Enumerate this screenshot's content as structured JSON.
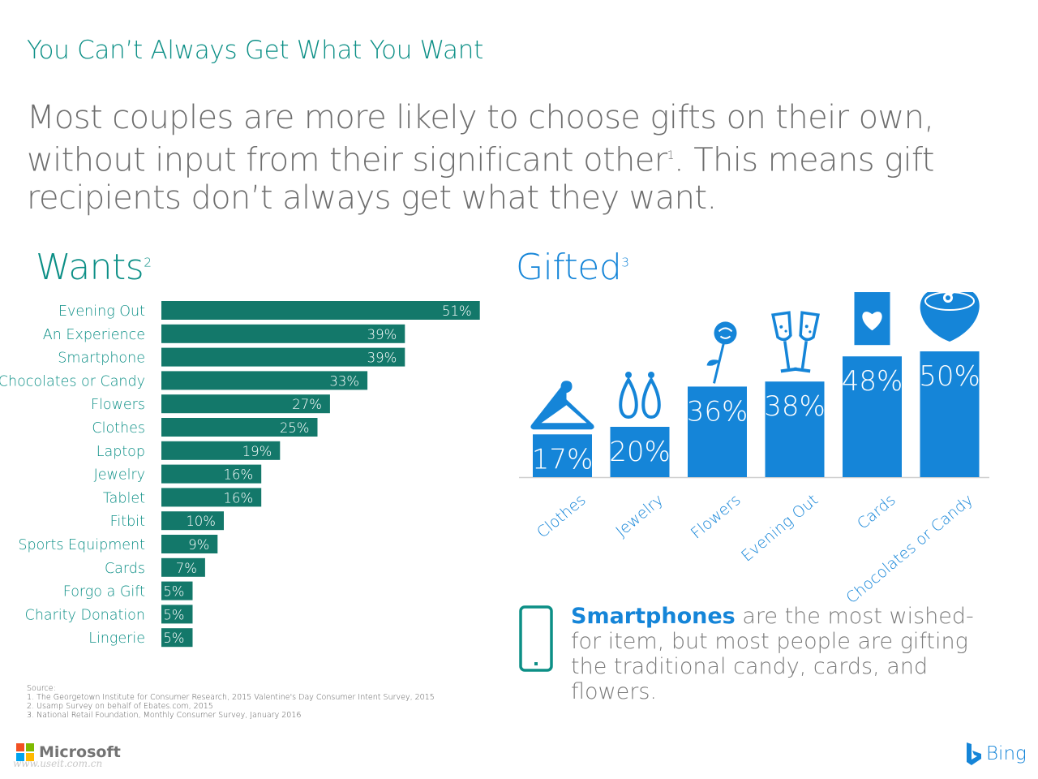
{
  "kicker": "You Can’t Always Get What You Want",
  "headline": {
    "part1": "Most couples are more likely to choose gifts on their own, without input from their significant other",
    "sup": "1",
    "part2": ". This means gift recipients don’t always get what they want."
  },
  "wants_title": {
    "text": "Wants",
    "sup": "2"
  },
  "gifted_title": {
    "text": "Gifted",
    "sup": "3"
  },
  "colors": {
    "teal": "#0c8f86",
    "bar_teal": "#13786a",
    "blue": "#1585d8",
    "gray": "#6e6e6e"
  },
  "chart_data": [
    {
      "type": "bar",
      "orientation": "horizontal",
      "title": "Wants",
      "categories": [
        "Evening Out",
        "An Experience",
        "Smartphone",
        "Chocolates or Candy",
        "Flowers",
        "Clothes",
        "Laptop",
        "Jewelry",
        "Tablet",
        "Fitbit",
        "Sports Equipment",
        "Cards",
        "Forgo a Gift",
        "Charity Donation",
        "Lingerie"
      ],
      "values": [
        51,
        39,
        39,
        33,
        27,
        25,
        19,
        16,
        16,
        10,
        9,
        7,
        5,
        5,
        5
      ],
      "value_labels": [
        "51%",
        "39%",
        "39%",
        "33%",
        "27%",
        "25%",
        "19%",
        "16%",
        "16%",
        "10%",
        "9%",
        "7%",
        "5%",
        "5%",
        "5%"
      ],
      "unit": "%",
      "color": "#13786a",
      "grid": false
    },
    {
      "type": "bar",
      "orientation": "vertical",
      "title": "Gifted",
      "categories": [
        "Clothes",
        "Jewelry",
        "Flowers",
        "Evening Out",
        "Cards",
        "Chocolates or Candy"
      ],
      "values": [
        17,
        20,
        36,
        38,
        48,
        50
      ],
      "value_labels": [
        "17%",
        "20%",
        "36%",
        "38%",
        "48%",
        "50%"
      ],
      "icons": [
        "hanger-icon",
        "earrings-icon",
        "rose-icon",
        "champagne-glasses-icon",
        "greeting-card-icon",
        "heart-candy-box-icon"
      ],
      "unit": "%",
      "color": "#1585d8",
      "grid": false
    }
  ],
  "callout": {
    "bold": "Smartphones",
    "rest": " are the most wished-for item, but most people are gifting the traditional candy, cards, and flowers.",
    "icon": "smartphone-icon"
  },
  "source": {
    "heading": "Source:",
    "lines": [
      "1. The Georgetown Institute for Consumer Research, 2015 Valentine's Day Consumer Intent Survey, 2015",
      "2.  Usamp Survey on behalf of Ebates.com, 2015",
      "3. National Retail Foundation, Monthly Consumer Survey, January 2016"
    ]
  },
  "footer": {
    "microsoft": "Microsoft",
    "microsoft_colors": [
      "#f25022",
      "#7fba00",
      "#00a4ef",
      "#ffb900"
    ],
    "watermark": "www.useit.com.cn",
    "bing": "Bing"
  }
}
